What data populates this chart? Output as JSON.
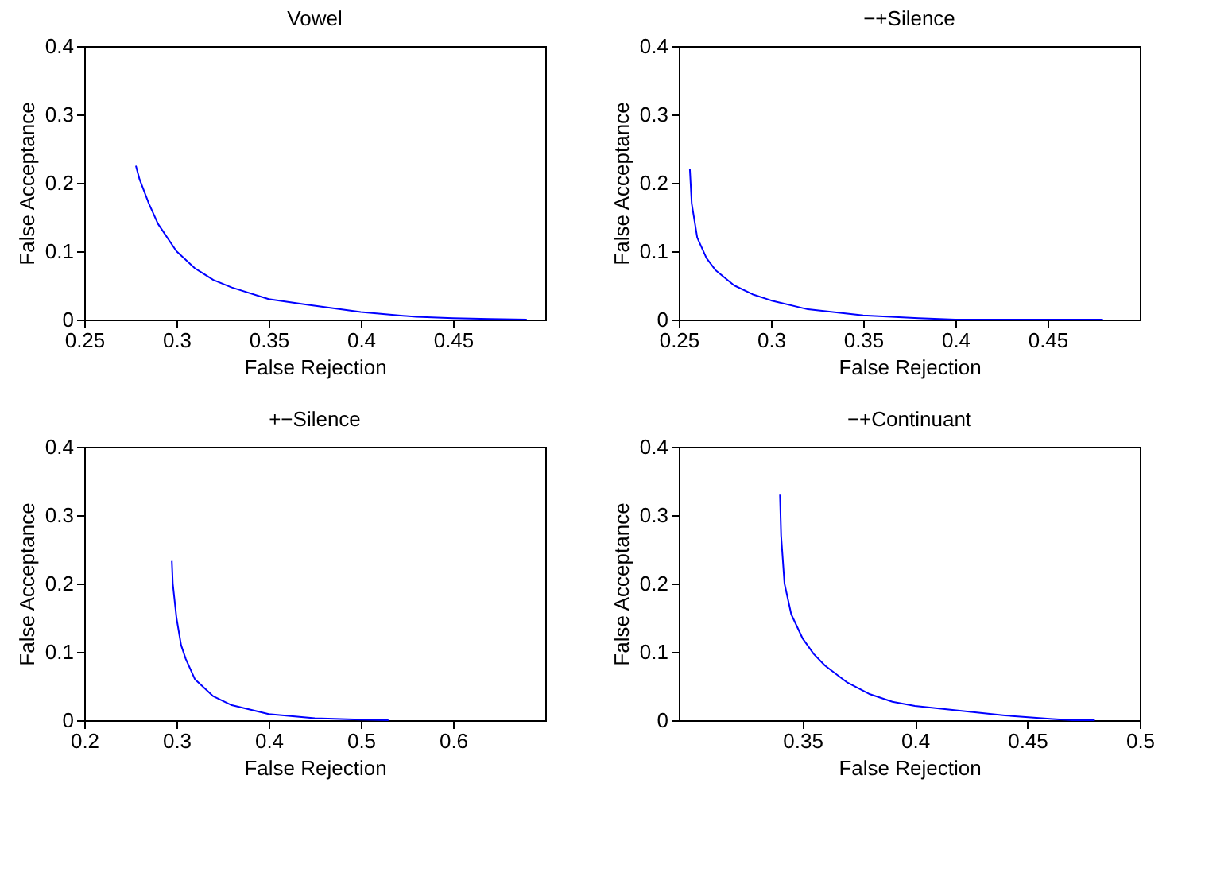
{
  "chart_data": [
    {
      "type": "line",
      "title": "Vowel",
      "xlabel": "False Rejection",
      "ylabel": "False Acceptance",
      "xlim": [
        0.25,
        0.5
      ],
      "xticks": [
        0.25,
        0.3,
        0.35,
        0.4,
        0.45
      ],
      "ylim": [
        0,
        0.4
      ],
      "yticks": [
        0,
        0.1,
        0.2,
        0.3,
        0.4
      ],
      "grid": false,
      "x": [
        0.278,
        0.28,
        0.285,
        0.29,
        0.3,
        0.31,
        0.32,
        0.33,
        0.35,
        0.37,
        0.4,
        0.43,
        0.45,
        0.47,
        0.49
      ],
      "series": [
        {
          "color": "#0000ff",
          "values": [
            0.225,
            0.205,
            0.17,
            0.14,
            0.1,
            0.075,
            0.058,
            0.047,
            0.03,
            0.022,
            0.011,
            0.004,
            0.002,
            0.001,
            0
          ]
        }
      ]
    },
    {
      "type": "line",
      "title": "−+Silence",
      "xlabel": "False Rejection",
      "ylabel": "False Acceptance",
      "xlim": [
        0.25,
        0.5
      ],
      "xticks": [
        0.25,
        0.3,
        0.35,
        0.4,
        0.45
      ],
      "ylim": [
        0,
        0.4
      ],
      "yticks": [
        0,
        0.1,
        0.2,
        0.3,
        0.4
      ],
      "grid": false,
      "x": [
        0.256,
        0.257,
        0.26,
        0.265,
        0.27,
        0.28,
        0.29,
        0.3,
        0.32,
        0.35,
        0.38,
        0.4,
        0.44,
        0.48
      ],
      "series": [
        {
          "color": "#0000ff",
          "values": [
            0.22,
            0.17,
            0.12,
            0.09,
            0.072,
            0.05,
            0.037,
            0.028,
            0.015,
            0.006,
            0.002,
            0,
            0,
            0
          ]
        }
      ]
    },
    {
      "type": "line",
      "title": "+−Silence",
      "xlabel": "False Rejection",
      "ylabel": "False Acceptance",
      "xlim": [
        0.2,
        0.7
      ],
      "xticks": [
        0.2,
        0.3,
        0.4,
        0.5,
        0.6
      ],
      "ylim": [
        0,
        0.4
      ],
      "yticks": [
        0,
        0.1,
        0.2,
        0.3,
        0.4
      ],
      "grid": false,
      "x": [
        0.295,
        0.296,
        0.3,
        0.305,
        0.31,
        0.32,
        0.34,
        0.36,
        0.4,
        0.45,
        0.5,
        0.53
      ],
      "series": [
        {
          "color": "#0000ff",
          "values": [
            0.233,
            0.2,
            0.15,
            0.11,
            0.09,
            0.06,
            0.035,
            0.022,
            0.009,
            0.003,
            0.001,
            0
          ]
        }
      ]
    },
    {
      "type": "line",
      "title": "−+Continuant",
      "xlabel": "False Rejection",
      "ylabel": "False Acceptance",
      "xlim": [
        0.295,
        0.5
      ],
      "xticks": [
        0.35,
        0.4,
        0.45,
        0.5
      ],
      "ylim": [
        0,
        0.4
      ],
      "yticks": [
        0,
        0.1,
        0.2,
        0.3,
        0.4
      ],
      "grid": false,
      "x": [
        0.34,
        0.3405,
        0.342,
        0.345,
        0.35,
        0.355,
        0.36,
        0.37,
        0.38,
        0.39,
        0.4,
        0.42,
        0.44,
        0.46,
        0.47,
        0.48
      ],
      "series": [
        {
          "color": "#0000ff",
          "values": [
            0.33,
            0.27,
            0.2,
            0.155,
            0.12,
            0.097,
            0.08,
            0.055,
            0.038,
            0.027,
            0.021,
            0.014,
            0.007,
            0.002,
            0,
            0
          ]
        }
      ]
    }
  ]
}
